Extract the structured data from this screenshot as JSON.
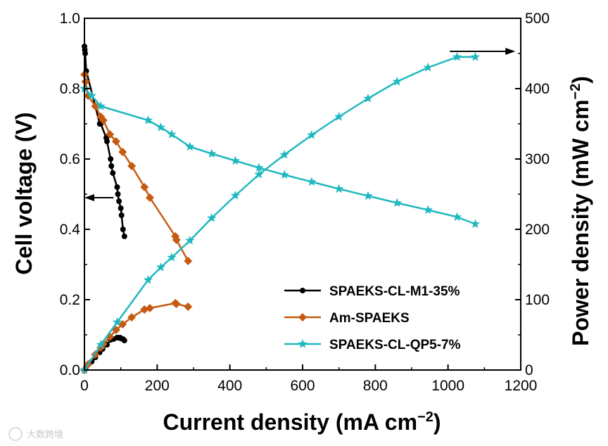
{
  "chart_data": {
    "type": "line",
    "xlabel": "Current density (mA cm",
    "xlabel_sup": "−2",
    "xlabel_end": ")",
    "ylabel_left": "Cell voltage (V)",
    "ylabel_right": "Power density (mW cm",
    "ylabel_right_sup": "−2",
    "ylabel_right_end": ")",
    "xlim": [
      0,
      1200
    ],
    "ylim_left": [
      0,
      1.0
    ],
    "ylim_right": [
      0,
      500
    ],
    "x_ticks": [
      "0",
      "200",
      "400",
      "600",
      "800",
      "1000",
      "1200"
    ],
    "y_left_ticks": [
      "0.0",
      "0.2",
      "0.4",
      "0.6",
      "0.8",
      "1.0"
    ],
    "y_right_ticks": [
      "0",
      "100",
      "200",
      "300",
      "400",
      "500"
    ],
    "legend_position": "bottom-right",
    "series": [
      {
        "name": "SPAEKS-CL-M1-35%",
        "color": "#000000",
        "marker": "circle",
        "polarization": {
          "x": [
            0,
            1,
            2,
            5,
            30,
            42,
            45,
            60,
            62,
            72,
            74,
            78,
            90,
            92,
            95,
            100,
            102,
            106,
            110
          ],
          "y": [
            0.92,
            0.91,
            0.9,
            0.85,
            0.75,
            0.7,
            0.7,
            0.66,
            0.65,
            0.6,
            0.58,
            0.56,
            0.52,
            0.5,
            0.48,
            0.46,
            0.44,
            0.4,
            0.38
          ]
        },
        "power": {
          "x": [
            0,
            5,
            20,
            30,
            42,
            50,
            62,
            72,
            80,
            90,
            92,
            98,
            100,
            106,
            110
          ],
          "y": [
            0,
            5,
            12,
            18,
            25,
            30,
            36,
            43,
            44,
            46,
            46,
            46,
            45,
            44,
            42
          ]
        }
      },
      {
        "name": "Am-SPAEKS",
        "color": "#c55a11",
        "marker": "diamond",
        "polarization": {
          "x": [
            0,
            3,
            10,
            30,
            45,
            52,
            70,
            87,
            105,
            130,
            165,
            180,
            250,
            253,
            285
          ],
          "y": [
            0.84,
            0.82,
            0.78,
            0.75,
            0.72,
            0.71,
            0.67,
            0.65,
            0.62,
            0.58,
            0.52,
            0.49,
            0.38,
            0.37,
            0.31
          ]
        },
        "power": {
          "x": [
            0,
            10,
            30,
            45,
            52,
            70,
            87,
            105,
            130,
            165,
            180,
            250,
            253,
            285
          ],
          "y": [
            0,
            8,
            22,
            32,
            37,
            47,
            57,
            65,
            75,
            86,
            88,
            95,
            94,
            90
          ]
        }
      },
      {
        "name": "SPAEKS-CL-QP5-7%",
        "color": "#20b8c0",
        "marker": "star",
        "polarization": {
          "x": [
            0,
            20,
            45,
            175,
            210,
            240,
            290,
            350,
            415,
            480,
            550,
            625,
            700,
            780,
            860,
            945,
            1025,
            1075
          ],
          "y": [
            0.8,
            0.78,
            0.75,
            0.71,
            0.69,
            0.67,
            0.635,
            0.615,
            0.595,
            0.575,
            0.555,
            0.535,
            0.515,
            0.495,
            0.475,
            0.455,
            0.435,
            0.415
          ]
        },
        "power": {
          "x": [
            0,
            45,
            90,
            175,
            210,
            240,
            290,
            350,
            415,
            480,
            550,
            625,
            700,
            780,
            860,
            945,
            1025,
            1075
          ],
          "y": [
            0,
            36,
            68,
            128,
            146,
            160,
            184,
            216,
            248,
            278,
            306,
            334,
            360,
            386,
            410,
            430,
            445,
            445
          ]
        }
      }
    ],
    "annotations": [
      {
        "label": "arrow-left",
        "x_start": 80,
        "x_end": 0,
        "y_left": 0.49
      },
      {
        "label": "arrow-right",
        "x_start": 1005,
        "x_end": 1185,
        "y_right": 453
      }
    ]
  },
  "watermark": "大数跨境"
}
